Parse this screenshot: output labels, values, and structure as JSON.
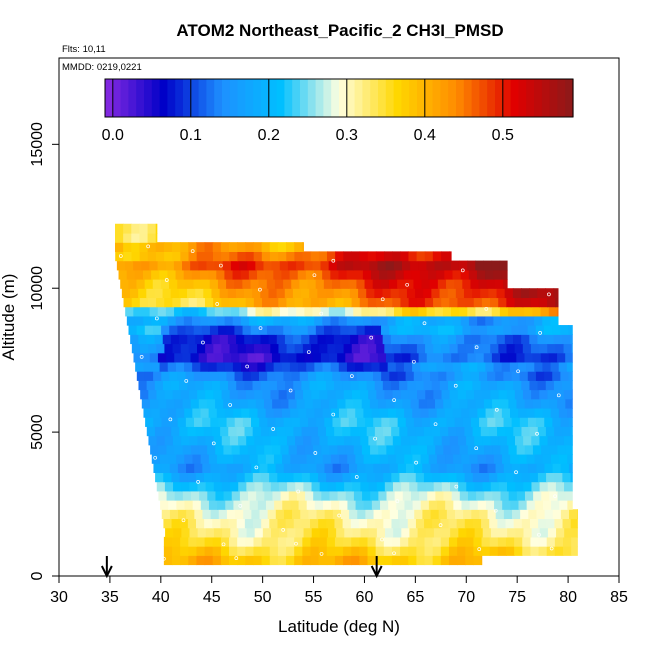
{
  "chart_data": {
    "type": "heatmap",
    "title": "ATOM2 Northeast_Pacific_2 CH3I_PMSD",
    "flights_label": "Flts: 10,11",
    "mmdd_label": "MMDD: 0219,0221",
    "xlabel": "Latitude (deg N)",
    "ylabel": "Altitude (m)",
    "xlim": [
      30,
      85
    ],
    "ylim": [
      0,
      18000
    ],
    "x_ticks": [
      "30",
      "35",
      "40",
      "45",
      "50",
      "55",
      "60",
      "65",
      "70",
      "75",
      "80",
      "85"
    ],
    "y_ticks": [
      "0",
      "5000",
      "10000",
      "15000"
    ],
    "colorbar": {
      "range": [
        -0.01,
        0.59
      ],
      "ticks": [
        "0.0",
        "0.1",
        "0.2",
        "0.3",
        "0.4",
        "0.5"
      ],
      "colors": [
        "#8a2be2",
        "#0000c8",
        "#1e90ff",
        "#00bfff",
        "#ffffe0",
        "#ffd700",
        "#ff8c00",
        "#e00000",
        "#8b1a1a"
      ]
    },
    "value_levels": [
      {
        "alt": 500,
        "value": 0.39
      },
      {
        "alt": 1300,
        "value": 0.33
      },
      {
        "alt": 2100,
        "value": 0.31
      },
      {
        "alt": 2900,
        "value": 0.26
      },
      {
        "alt": 3700,
        "value": 0.17
      },
      {
        "alt": 4500,
        "value": 0.19
      },
      {
        "alt": 5300,
        "value": 0.21
      },
      {
        "alt": 6100,
        "value": 0.17
      },
      {
        "alt": 6800,
        "value": 0.16
      },
      {
        "alt": 7600,
        "value": 0.05
      },
      {
        "alt": 8300,
        "value": 0.08
      },
      {
        "alt": 8900,
        "value": 0.17
      },
      {
        "alt": 9500,
        "value": 0.42
      },
      {
        "alt": 10200,
        "value": 0.46
      },
      {
        "alt": 10900,
        "value": 0.52
      },
      {
        "alt": 11700,
        "value": 0.36
      }
    ],
    "arrows_latitude": [
      34.7,
      61.2
    ]
  }
}
